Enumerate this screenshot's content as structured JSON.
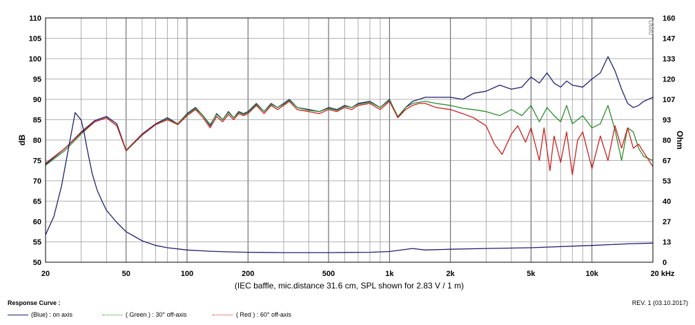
{
  "chart_data": {
    "type": "line",
    "title": "",
    "xlabel": "(IEC baffle, mic.distance 31.6 cm, SPL shown for 2.83 V / 1 m)",
    "ylabel": "dB",
    "ylabel_right": "Ohm",
    "x_scale": "log",
    "xlim": [
      20,
      20000
    ],
    "ylim": [
      50,
      110
    ],
    "ylim_right": [
      0,
      160
    ],
    "x_ticks": [
      {
        "v": 20,
        "label": "20"
      },
      {
        "v": 50,
        "label": "50"
      },
      {
        "v": 100,
        "label": "100"
      },
      {
        "v": 200,
        "label": "200"
      },
      {
        "v": 500,
        "label": "500"
      },
      {
        "v": 1000,
        "label": "1k"
      },
      {
        "v": 2000,
        "label": "2k"
      },
      {
        "v": 5000,
        "label": "5k"
      },
      {
        "v": 10000,
        "label": "10k"
      },
      {
        "v": 20000,
        "label": "20 kHz"
      }
    ],
    "y_ticks": [
      "50",
      "55",
      "60",
      "65",
      "70",
      "75",
      "80",
      "85",
      "90",
      "95",
      "100",
      "105",
      "110"
    ],
    "y_ticks_right": [
      "0",
      "13",
      "27",
      "40",
      "53",
      "67",
      "80",
      "93",
      "107",
      "120",
      "133",
      "147",
      "160"
    ],
    "grid": true,
    "watermark": "D680",
    "series": [
      {
        "name": "(Blue) : on axis",
        "color": "#1f1f6e",
        "axis": "left",
        "x": [
          20,
          25,
          30,
          35,
          40,
          45,
          50,
          60,
          70,
          80,
          90,
          100,
          110,
          120,
          130,
          140,
          150,
          160,
          170,
          180,
          190,
          200,
          220,
          240,
          260,
          280,
          300,
          320,
          350,
          400,
          450,
          500,
          550,
          600,
          650,
          700,
          800,
          900,
          1000,
          1100,
          1200,
          1300,
          1400,
          1500,
          1700,
          2000,
          2300,
          2600,
          3000,
          3500,
          4000,
          4500,
          5000,
          5500,
          6000,
          6500,
          7000,
          7500,
          8000,
          9000,
          10000,
          11000,
          12000,
          13000,
          14000,
          15000,
          16000,
          17000,
          18000,
          20000
        ],
        "y": [
          74.0,
          78.0,
          82.0,
          84.8,
          85.8,
          84.0,
          77.5,
          81.5,
          84.0,
          85.5,
          84.0,
          86.5,
          88.0,
          86.0,
          83.5,
          86.5,
          85.0,
          87.0,
          85.5,
          87.0,
          86.5,
          87.0,
          89.0,
          87.0,
          89.0,
          88.0,
          89.0,
          90.0,
          88.0,
          87.5,
          87.0,
          88.0,
          87.5,
          88.5,
          88.0,
          89.0,
          89.5,
          88.0,
          90.0,
          85.5,
          88.0,
          89.5,
          90.0,
          90.5,
          90.5,
          90.5,
          90.0,
          91.5,
          92.0,
          93.5,
          92.5,
          93.0,
          95.5,
          94.0,
          96.5,
          94.0,
          93.0,
          94.5,
          93.5,
          93.0,
          95.0,
          96.5,
          100.5,
          97.0,
          92.5,
          89.0,
          88.0,
          88.5,
          89.5,
          90.5
        ]
      },
      {
        "name": "( Green ) : 30° off-axis",
        "color": "#2e8b2e",
        "axis": "left",
        "x": [
          20,
          25,
          30,
          35,
          40,
          45,
          50,
          60,
          70,
          80,
          90,
          100,
          110,
          120,
          130,
          140,
          150,
          160,
          170,
          180,
          190,
          200,
          220,
          240,
          260,
          280,
          300,
          320,
          350,
          400,
          450,
          500,
          550,
          600,
          650,
          700,
          800,
          900,
          1000,
          1100,
          1200,
          1300,
          1400,
          1500,
          1700,
          2000,
          2300,
          2600,
          3000,
          3500,
          4000,
          4500,
          5000,
          5500,
          6000,
          6500,
          7000,
          7500,
          8000,
          9000,
          10000,
          11000,
          12000,
          13000,
          14000,
          15000,
          16000,
          17000,
          18000,
          20000
        ],
        "y": [
          73.8,
          77.5,
          81.5,
          84.5,
          85.5,
          83.5,
          77.3,
          81.2,
          83.8,
          85.2,
          84.0,
          86.3,
          87.8,
          86.0,
          83.8,
          86.3,
          85.0,
          86.8,
          85.5,
          86.8,
          86.3,
          86.8,
          88.8,
          87.0,
          88.8,
          88.0,
          88.8,
          89.8,
          88.0,
          87.3,
          87.0,
          87.8,
          87.3,
          88.3,
          88.0,
          88.8,
          89.3,
          88.0,
          89.8,
          85.8,
          88.0,
          89.0,
          89.3,
          89.5,
          89.0,
          88.5,
          87.8,
          87.5,
          87.0,
          86.0,
          87.5,
          86.0,
          88.5,
          84.5,
          88.0,
          86.0,
          84.5,
          88.5,
          84.0,
          86.0,
          83.0,
          84.0,
          88.5,
          82.5,
          75.0,
          83.0,
          82.0,
          78.0,
          76.0,
          75.0
        ]
      },
      {
        "name": "( Red ) : 60° off-axis",
        "color": "#cc1f1f",
        "axis": "left",
        "x": [
          20,
          25,
          30,
          35,
          40,
          45,
          50,
          60,
          70,
          80,
          90,
          100,
          110,
          120,
          130,
          140,
          150,
          160,
          170,
          180,
          190,
          200,
          220,
          240,
          260,
          280,
          300,
          320,
          350,
          400,
          450,
          500,
          550,
          600,
          650,
          700,
          800,
          900,
          1000,
          1100,
          1200,
          1300,
          1400,
          1500,
          1700,
          2000,
          2300,
          2600,
          3000,
          3300,
          3600,
          4000,
          4300,
          4700,
          5000,
          5500,
          5800,
          6200,
          6500,
          7000,
          7500,
          8000,
          8500,
          9000,
          10000,
          11000,
          12000,
          13000,
          14000,
          15000,
          16000,
          17000,
          18000,
          20000
        ],
        "y": [
          74.3,
          78.0,
          81.8,
          84.5,
          85.5,
          83.5,
          77.5,
          81.3,
          83.8,
          85.0,
          83.8,
          86.0,
          87.5,
          85.5,
          83.0,
          85.8,
          84.5,
          86.3,
          85.0,
          86.5,
          86.0,
          86.5,
          88.5,
          86.5,
          88.5,
          87.5,
          88.5,
          89.5,
          87.5,
          87.0,
          86.5,
          87.5,
          87.0,
          88.0,
          87.5,
          88.5,
          89.0,
          87.5,
          89.5,
          85.5,
          87.5,
          88.5,
          89.0,
          89.0,
          88.0,
          87.5,
          86.5,
          85.5,
          83.5,
          79.0,
          76.5,
          81.5,
          83.5,
          79.5,
          83.0,
          75.0,
          83.0,
          72.5,
          81.0,
          74.5,
          82.0,
          71.5,
          80.0,
          82.0,
          73.0,
          81.0,
          75.0,
          83.5,
          78.0,
          83.0,
          78.0,
          79.0,
          77.0,
          73.5
        ]
      },
      {
        "name": "(Blue) : impedance",
        "color": "#1f1f6e",
        "axis": "right",
        "legend": false,
        "x": [
          20,
          22,
          24,
          26,
          28,
          30,
          31,
          32,
          34,
          36,
          38,
          40,
          45,
          50,
          60,
          70,
          80,
          100,
          130,
          160,
          200,
          300,
          500,
          800,
          1000,
          1300,
          1500,
          2000,
          3000,
          5000,
          10000,
          15000,
          20000
        ],
        "y": [
          18,
          30,
          50,
          75,
          98,
          93,
          85,
          75,
          58,
          47,
          40,
          34,
          26,
          20,
          14,
          11,
          9.5,
          8,
          7.2,
          6.8,
          6.5,
          6.3,
          6.3,
          6.5,
          7,
          9,
          8,
          8.5,
          9,
          9.5,
          11,
          12,
          12.5
        ]
      }
    ]
  },
  "footer": {
    "section_title": "Response Curve :",
    "revision": "REV. 1 (03.10.2017)",
    "legend": [
      {
        "label": "(Blue)  : on axis",
        "color": "#1f1f6e",
        "dash": "solid"
      },
      {
        "label": "( Green ) : 30° off-axis",
        "color": "#2e8b2e",
        "dash": "dotted"
      },
      {
        "label": "( Red ) : 60° off-axis",
        "color": "#cc1f1f",
        "dash": "dotted"
      }
    ]
  }
}
